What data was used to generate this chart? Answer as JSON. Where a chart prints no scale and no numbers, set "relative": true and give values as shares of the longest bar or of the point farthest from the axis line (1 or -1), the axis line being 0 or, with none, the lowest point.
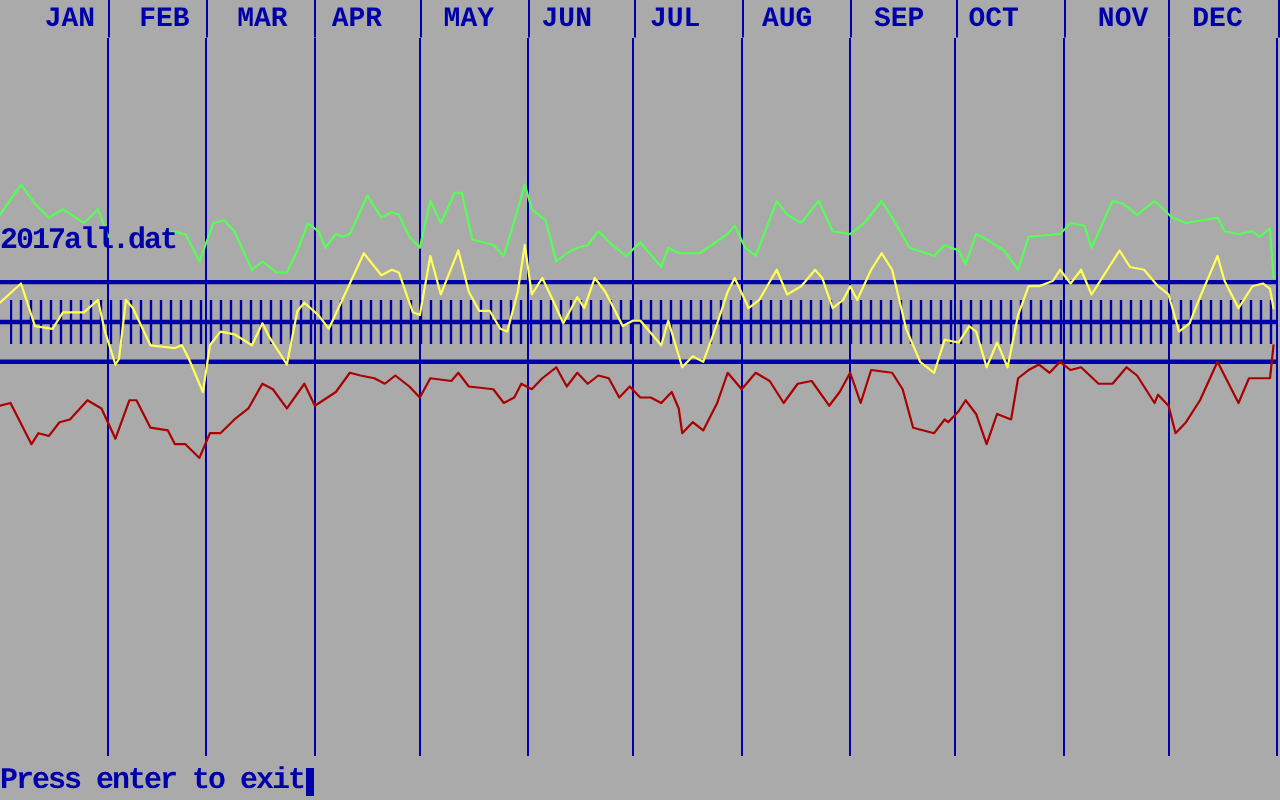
{
  "chart_data": {
    "type": "line",
    "relative": true,
    "grid": "x",
    "marker": "none",
    "line_style": "solid",
    "annotations": [
      "2017all.dat",
      "Press enter to exit"
    ],
    "xlim": [
      "2017-01-01",
      "2018-01-01"
    ],
    "xticks": [
      {
        "value": "2017-01-21",
        "label": "JAN"
      },
      {
        "value": "2017-02-01",
        "label": null
      },
      {
        "value": "2017-02-17",
        "label": "FEB"
      },
      {
        "value": "2017-03-01",
        "label": null
      },
      {
        "value": "2017-03-17",
        "label": "MAR"
      },
      {
        "value": "2017-04-01",
        "label": null
      },
      {
        "value": "2017-04-13",
        "label": "APR"
      },
      {
        "value": "2017-05-01",
        "label": null
      },
      {
        "value": "2017-05-15",
        "label": "MAY"
      },
      {
        "value": "2017-06-01",
        "label": null
      },
      {
        "value": "2017-06-12",
        "label": "JUN"
      },
      {
        "value": "2017-07-01",
        "label": null
      },
      {
        "value": "2017-07-13",
        "label": "JUL"
      },
      {
        "value": "2017-08-01",
        "label": null
      },
      {
        "value": "2017-08-14",
        "label": "AUG"
      },
      {
        "value": "2017-09-01",
        "label": null
      },
      {
        "value": "2017-09-15",
        "label": "SEP"
      },
      {
        "value": "2017-10-01",
        "label": null
      },
      {
        "value": "2017-10-12",
        "label": "OCT"
      },
      {
        "value": "2017-11-01",
        "label": null
      },
      {
        "value": "2017-11-18",
        "label": "NOV"
      },
      {
        "value": "2017-12-01",
        "label": null
      },
      {
        "value": "2017-12-15",
        "label": "DEC"
      },
      {
        "value": "2018-01-01",
        "label": null
      }
    ],
    "ref_lines": [
      {
        "axis": "y",
        "value": 0.29,
        "color": "#0000aa"
      },
      {
        "axis": "y",
        "value": 0,
        "color": "#0000aa"
      },
      {
        "axis": "y",
        "value": -0.29,
        "color": "#0000aa"
      }
    ],
    "series": [
      {
        "color": "#55ff55",
        "x": [
          "2017-01-01",
          "2017-01-07",
          "2017-01-11",
          "2017-01-15",
          "2017-01-19",
          "2017-01-25",
          "2017-01-29",
          "2017-02-01",
          "2017-02-10",
          "2017-02-19",
          "2017-02-23",
          "2017-02-27",
          "2017-03-03",
          "2017-03-06",
          "2017-03-09",
          "2017-03-14",
          "2017-03-17",
          "2017-03-21",
          "2017-03-24",
          "2017-03-27",
          "2017-03-30",
          "2017-04-02",
          "2017-04-04",
          "2017-04-07",
          "2017-04-09",
          "2017-04-11",
          "2017-04-16",
          "2017-04-20",
          "2017-04-23",
          "2017-04-25",
          "2017-04-28",
          "2017-05-01",
          "2017-05-04",
          "2017-05-07",
          "2017-05-11",
          "2017-05-13",
          "2017-05-16",
          "2017-05-22",
          "2017-05-25",
          "2017-05-29",
          "2017-05-31",
          "2017-06-02",
          "2017-06-06",
          "2017-06-09",
          "2017-06-12",
          "2017-06-15",
          "2017-06-18",
          "2017-06-21",
          "2017-06-25",
          "2017-06-29",
          "2017-07-03",
          "2017-07-09",
          "2017-07-11",
          "2017-07-14",
          "2017-07-20",
          "2017-07-28",
          "2017-07-30",
          "2017-08-02",
          "2017-08-05",
          "2017-08-11",
          "2017-08-14",
          "2017-08-18",
          "2017-08-23",
          "2017-08-27",
          "2017-09-01",
          "2017-09-05",
          "2017-09-10",
          "2017-09-13",
          "2017-09-18",
          "2017-09-25",
          "2017-09-28",
          "2017-09-30",
          "2017-10-02",
          "2017-10-04",
          "2017-10-07",
          "2017-10-10",
          "2017-10-15",
          "2017-10-19",
          "2017-10-22",
          "2017-10-31",
          "2017-11-03",
          "2017-11-07",
          "2017-11-09",
          "2017-11-15",
          "2017-11-18",
          "2017-11-22",
          "2017-11-27",
          "2017-12-02",
          "2017-12-06",
          "2017-12-15",
          "2017-12-17",
          "2017-12-21",
          "2017-12-25",
          "2017-12-27",
          "2017-12-30",
          "2017-12-31"
        ],
        "values": [
          0.78,
          1.0,
          0.86,
          0.76,
          0.82,
          0.72,
          0.82,
          0.62,
          null,
          0.66,
          0.64,
          0.44,
          0.72,
          0.74,
          0.66,
          0.38,
          0.44,
          0.36,
          0.36,
          0.52,
          0.72,
          0.66,
          0.54,
          0.64,
          0.62,
          0.64,
          0.92,
          0.76,
          0.8,
          0.78,
          0.62,
          0.54,
          0.88,
          0.72,
          0.94,
          0.94,
          0.6,
          0.56,
          0.48,
          0.82,
          1.0,
          0.82,
          0.74,
          0.44,
          0.5,
          0.54,
          0.56,
          0.66,
          0.56,
          0.48,
          0.58,
          0.4,
          0.54,
          0.5,
          0.5,
          0.64,
          0.7,
          0.54,
          0.48,
          0.88,
          0.78,
          0.72,
          0.88,
          0.66,
          0.64,
          0.72,
          0.88,
          0.76,
          0.54,
          0.48,
          0.56,
          0.54,
          0.52,
          0.42,
          0.64,
          0.6,
          0.52,
          0.38,
          0.62,
          0.64,
          0.72,
          0.7,
          0.54,
          0.88,
          0.86,
          0.78,
          0.88,
          0.76,
          0.72,
          0.76,
          0.66,
          0.64,
          0.66,
          0.62,
          0.68,
          0.32
        ]
      },
      {
        "color": "#ffff55",
        "x": [
          "2017-01-01",
          "2017-01-07",
          "2017-01-11",
          "2017-01-16",
          "2017-01-19",
          "2017-01-25",
          "2017-01-29",
          "2017-01-31",
          "2017-02-03",
          "2017-02-04",
          "2017-02-06",
          "2017-02-08",
          "2017-02-13",
          "2017-02-20",
          "2017-02-22",
          "2017-02-24",
          "2017-02-28",
          "2017-03-02",
          "2017-03-05",
          "2017-03-09",
          "2017-03-14",
          "2017-03-17",
          "2017-03-19",
          "2017-03-24",
          "2017-03-27",
          "2017-03-29",
          "2017-04-02",
          "2017-04-05",
          "2017-04-15",
          "2017-04-20",
          "2017-04-23",
          "2017-04-25",
          "2017-04-29",
          "2017-05-01",
          "2017-05-04",
          "2017-05-07",
          "2017-05-12",
          "2017-05-15",
          "2017-05-18",
          "2017-05-21",
          "2017-05-24",
          "2017-05-26",
          "2017-05-29",
          "2017-05-31",
          "2017-06-02",
          "2017-06-05",
          "2017-06-08",
          "2017-06-11",
          "2017-06-15",
          "2017-06-17",
          "2017-06-20",
          "2017-06-23",
          "2017-06-26",
          "2017-06-28",
          "2017-07-01",
          "2017-07-03",
          "2017-07-09",
          "2017-07-11",
          "2017-07-15",
          "2017-07-18",
          "2017-07-21",
          "2017-07-25",
          "2017-07-28",
          "2017-07-30",
          "2017-08-03",
          "2017-08-06",
          "2017-08-11",
          "2017-08-14",
          "2017-08-18",
          "2017-08-22",
          "2017-08-24",
          "2017-08-27",
          "2017-08-30",
          "2017-09-01",
          "2017-09-03",
          "2017-09-07",
          "2017-09-10",
          "2017-09-13",
          "2017-09-17",
          "2017-09-21",
          "2017-09-25",
          "2017-09-28",
          "2017-10-02",
          "2017-10-05",
          "2017-10-07",
          "2017-10-10",
          "2017-10-13",
          "2017-10-16",
          "2017-10-19",
          "2017-10-22",
          "2017-10-25",
          "2017-10-29",
          "2017-10-31",
          "2017-11-03",
          "2017-11-06",
          "2017-11-09",
          "2017-11-17",
          "2017-11-20",
          "2017-11-24",
          "2017-11-28",
          "2017-12-01",
          "2017-12-04",
          "2017-12-07",
          "2017-12-10",
          "2017-12-15",
          "2017-12-17",
          "2017-12-21",
          "2017-12-25",
          "2017-12-28",
          "2017-12-30",
          "2017-12-31"
        ],
        "values": [
          0.14,
          0.28,
          -0.03,
          -0.05,
          0.07,
          0.07,
          0.16,
          -0.07,
          -0.31,
          -0.27,
          0.16,
          0.1,
          -0.17,
          -0.19,
          -0.17,
          -0.27,
          -0.51,
          -0.17,
          -0.07,
          -0.09,
          -0.17,
          -0.01,
          -0.11,
          -0.31,
          0.08,
          0.14,
          0.05,
          -0.05,
          0.5,
          0.34,
          0.38,
          0.36,
          0.07,
          0.05,
          0.48,
          0.2,
          0.52,
          0.22,
          0.08,
          0.08,
          -0.05,
          -0.07,
          0.22,
          0.56,
          0.2,
          0.32,
          0.16,
          -0.01,
          0.18,
          0.1,
          0.32,
          0.22,
          0.07,
          -0.03,
          0.01,
          0.01,
          -0.17,
          0.01,
          -0.33,
          -0.25,
          -0.29,
          -0.01,
          0.22,
          0.32,
          0.1,
          0.16,
          0.38,
          0.2,
          0.26,
          0.38,
          0.32,
          0.1,
          0.16,
          0.26,
          0.16,
          0.38,
          0.5,
          0.38,
          -0.05,
          -0.29,
          -0.37,
          -0.13,
          -0.15,
          -0.03,
          -0.07,
          -0.33,
          -0.15,
          -0.33,
          0.05,
          0.26,
          0.26,
          0.3,
          0.38,
          0.28,
          0.38,
          0.2,
          0.52,
          0.4,
          0.38,
          0.26,
          0.2,
          -0.07,
          -0.01,
          0.18,
          0.48,
          0.3,
          0.1,
          0.26,
          0.28,
          0.24,
          0.1
        ]
      },
      {
        "color": "#aa0000",
        "x": [
          "2017-01-01",
          "2017-01-04",
          "2017-01-10",
          "2017-01-12",
          "2017-01-15",
          "2017-01-18",
          "2017-01-21",
          "2017-01-26",
          "2017-01-30",
          "2017-02-03",
          "2017-02-07",
          "2017-02-09",
          "2017-02-13",
          "2017-02-18",
          "2017-02-20",
          "2017-02-23",
          "2017-02-27",
          "2017-03-02",
          "2017-03-05",
          "2017-03-09",
          "2017-03-13",
          "2017-03-17",
          "2017-03-20",
          "2017-03-24",
          "2017-03-29",
          "2017-04-01",
          "2017-04-07",
          "2017-04-11",
          "2017-04-14",
          "2017-04-18",
          "2017-04-21",
          "2017-04-24",
          "2017-04-28",
          "2017-05-01",
          "2017-05-04",
          "2017-05-10",
          "2017-05-12",
          "2017-05-15",
          "2017-05-22",
          "2017-05-25",
          "2017-05-28",
          "2017-05-30",
          "2017-06-02",
          "2017-06-05",
          "2017-06-09",
          "2017-06-12",
          "2017-06-15",
          "2017-06-18",
          "2017-06-21",
          "2017-06-24",
          "2017-06-27",
          "2017-06-30",
          "2017-07-03",
          "2017-07-06",
          "2017-07-09",
          "2017-07-12",
          "2017-07-14",
          "2017-07-15",
          "2017-07-18",
          "2017-07-21",
          "2017-07-25",
          "2017-07-28",
          "2017-08-01",
          "2017-08-05",
          "2017-08-09",
          "2017-08-13",
          "2017-08-17",
          "2017-08-21",
          "2017-08-26",
          "2017-08-29",
          "2017-09-01",
          "2017-09-04",
          "2017-09-07",
          "2017-09-13",
          "2017-09-16",
          "2017-09-19",
          "2017-09-25",
          "2017-09-28",
          "2017-09-29",
          "2017-10-02",
          "2017-10-04",
          "2017-10-07",
          "2017-10-10",
          "2017-10-13",
          "2017-10-17",
          "2017-10-19",
          "2017-10-22",
          "2017-10-25",
          "2017-10-28",
          "2017-10-31",
          "2017-11-03",
          "2017-11-06",
          "2017-11-11",
          "2017-11-15",
          "2017-11-19",
          "2017-11-22",
          "2017-11-27",
          "2017-11-28",
          "2017-12-01",
          "2017-12-03",
          "2017-12-06",
          "2017-12-10",
          "2017-12-15",
          "2017-12-17",
          "2017-12-21",
          "2017-12-24",
          "2017-12-30",
          "2017-12-31"
        ],
        "values": [
          -0.61,
          -0.59,
          -0.89,
          -0.81,
          -0.83,
          -0.73,
          -0.71,
          -0.57,
          -0.63,
          -0.85,
          -0.57,
          -0.57,
          -0.77,
          -0.79,
          -0.89,
          -0.89,
          -0.99,
          -0.81,
          -0.81,
          -0.71,
          -0.63,
          -0.45,
          -0.49,
          -0.63,
          -0.45,
          -0.61,
          -0.51,
          -0.37,
          -0.39,
          -0.41,
          -0.45,
          -0.39,
          -0.47,
          -0.55,
          -0.41,
          -0.43,
          -0.37,
          -0.47,
          -0.49,
          -0.59,
          -0.55,
          -0.45,
          -0.49,
          -0.41,
          -0.33,
          -0.47,
          -0.37,
          -0.45,
          -0.39,
          -0.41,
          -0.55,
          -0.47,
          -0.55,
          -0.55,
          -0.59,
          -0.51,
          -0.63,
          -0.81,
          -0.73,
          -0.79,
          -0.59,
          -0.37,
          -0.49,
          -0.37,
          -0.43,
          -0.59,
          -0.45,
          -0.43,
          -0.61,
          -0.51,
          -0.37,
          -0.59,
          -0.35,
          -0.37,
          -0.49,
          -0.77,
          -0.81,
          -0.71,
          -0.73,
          -0.65,
          -0.57,
          -0.67,
          -0.89,
          -0.67,
          -0.71,
          -0.41,
          -0.35,
          -0.31,
          -0.37,
          -0.29,
          -0.35,
          -0.33,
          -0.45,
          -0.45,
          -0.33,
          -0.39,
          -0.59,
          -0.53,
          -0.61,
          -0.81,
          -0.73,
          -0.57,
          -0.29,
          -0.39,
          -0.59,
          -0.41,
          -0.41,
          -0.17
        ]
      }
    ]
  }
}
